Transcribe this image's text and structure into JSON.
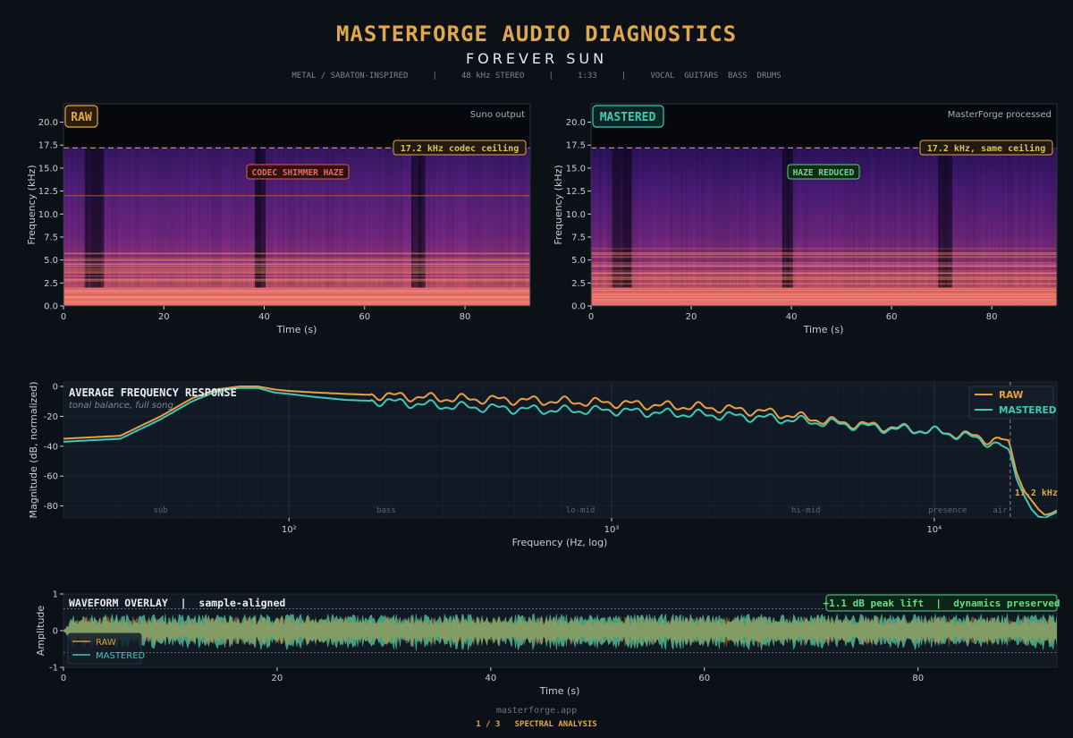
{
  "header": {
    "title": "MASTERFORGE AUDIO DIAGNOSTICS",
    "subtitle": "FOREVER SUN",
    "meta": "METAL / SABATON-INSPIRED     |     48 kHz STEREO     |     1:33     |     VOCAL  GUITARS  BASS  DRUMS"
  },
  "footer": {
    "site": "masterforge.app",
    "page": "1 / 3   SPECTRAL ANALYSIS"
  },
  "colors": {
    "accent": "#e0a84a",
    "raw": "#e8a040",
    "mastered": "#3ec9b8",
    "haze_label": "#e05a4e",
    "reduced_label": "#58d07a",
    "background": "#0c1118"
  },
  "chart_data": [
    {
      "type": "heatmap",
      "name": "raw_spectrogram",
      "badge": "RAW",
      "note": "Suno output",
      "xlabel": "Time (s)",
      "ylabel": "Frequency (kHz)",
      "xlim": [
        0,
        93
      ],
      "ylim": [
        0,
        22
      ],
      "xticks": [
        "0",
        "20",
        "40",
        "60",
        "80"
      ],
      "yticks": [
        "0.0",
        "2.5",
        "5.0",
        "7.5",
        "10.0",
        "12.5",
        "15.0",
        "17.5",
        "20.0"
      ],
      "ceiling_khz": 17.2,
      "ceiling_label": "17.2 kHz codec ceiling",
      "annotation": "CODEC SHIMMER HAZE",
      "haze_line_khz": 12.0
    },
    {
      "type": "heatmap",
      "name": "mastered_spectrogram",
      "badge": "MASTERED",
      "note": "MasterForge processed",
      "xlabel": "Time (s)",
      "ylabel": "Frequency (kHz)",
      "xlim": [
        0,
        93
      ],
      "ylim": [
        0,
        22
      ],
      "xticks": [
        "0",
        "20",
        "40",
        "60",
        "80"
      ],
      "yticks": [
        "0.0",
        "2.5",
        "5.0",
        "7.5",
        "10.0",
        "12.5",
        "15.0",
        "17.5",
        "20.0"
      ],
      "ceiling_khz": 17.2,
      "ceiling_label": "17.2 kHz, same ceiling",
      "annotation": "HAZE REDUCED"
    },
    {
      "type": "line",
      "name": "frequency_response",
      "title": "AVERAGE FREQUENCY RESPONSE",
      "subtitle": "tonal balance, full song",
      "xlabel": "Frequency (Hz, log)",
      "ylabel": "Magnitude (dB, normalized)",
      "xscale": "log",
      "xlim": [
        20,
        24000
      ],
      "ylim": [
        -88,
        3
      ],
      "yticks": [
        "0",
        "-20",
        "-40",
        "-60",
        "-80"
      ],
      "xticks": [
        "10²",
        "10³",
        "10⁴"
      ],
      "band_labels": [
        "sub",
        "bass",
        "lo-mid",
        "hi-mid",
        "presence",
        "air"
      ],
      "cutoff_label": "17.2 kHz",
      "cutoff_hz": 17200,
      "legend": "top-right",
      "series": [
        {
          "name": "RAW",
          "x": [
            20,
            30,
            40,
            50,
            60,
            70,
            80,
            90,
            100,
            120,
            150,
            200,
            300,
            500,
            700,
            1000,
            1500,
            2000,
            3000,
            5000,
            7000,
            10000,
            13000,
            15000,
            16000,
            17000,
            17200,
            18000,
            19000,
            20000,
            21000,
            22000,
            23000,
            24000
          ],
          "values": [
            -35,
            -33,
            -20,
            -8,
            -2,
            0,
            0,
            -2,
            -3,
            -4,
            -5,
            -6,
            -8,
            -9,
            -10,
            -11,
            -13,
            -14,
            -17,
            -24,
            -27,
            -30,
            -33,
            -36,
            -35,
            -36,
            -40,
            -58,
            -70,
            -76,
            -82,
            -86,
            -85,
            -83
          ]
        },
        {
          "name": "MASTERED",
          "x": [
            20,
            30,
            40,
            50,
            60,
            70,
            80,
            90,
            100,
            120,
            150,
            200,
            300,
            500,
            700,
            1000,
            1500,
            2000,
            3000,
            5000,
            7000,
            10000,
            13000,
            15000,
            16000,
            17000,
            17200,
            18000,
            19000,
            20000,
            21000,
            22000,
            23000,
            24000
          ],
          "values": [
            -37,
            -35,
            -22,
            -10,
            -3,
            -1,
            -1,
            -4,
            -5,
            -7,
            -9,
            -10,
            -13,
            -15,
            -16,
            -16,
            -18,
            -19,
            -21,
            -25,
            -28,
            -30,
            -34,
            -38,
            -39,
            -42,
            -45,
            -62,
            -73,
            -82,
            -87,
            -88,
            -86,
            -84
          ]
        }
      ]
    },
    {
      "type": "area",
      "name": "waveform_overlay",
      "title": "WAVEFORM OVERLAY  |  sample-aligned",
      "badge": "+1.1 dB peak lift  |  dynamics preserved",
      "xlabel": "Time (s)",
      "ylabel": "Amplitude",
      "xlim": [
        0,
        93
      ],
      "ylim": [
        -1,
        1
      ],
      "xticks": [
        "0",
        "20",
        "40",
        "60",
        "80"
      ],
      "yticks": [
        "1",
        "0",
        "-1"
      ],
      "peak_guides": [
        0.6,
        -0.6
      ],
      "legend": "bottom-left",
      "series": [
        {
          "name": "RAW",
          "envelope": 0.3
        },
        {
          "name": "MASTERED",
          "envelope": 0.34
        }
      ]
    }
  ]
}
